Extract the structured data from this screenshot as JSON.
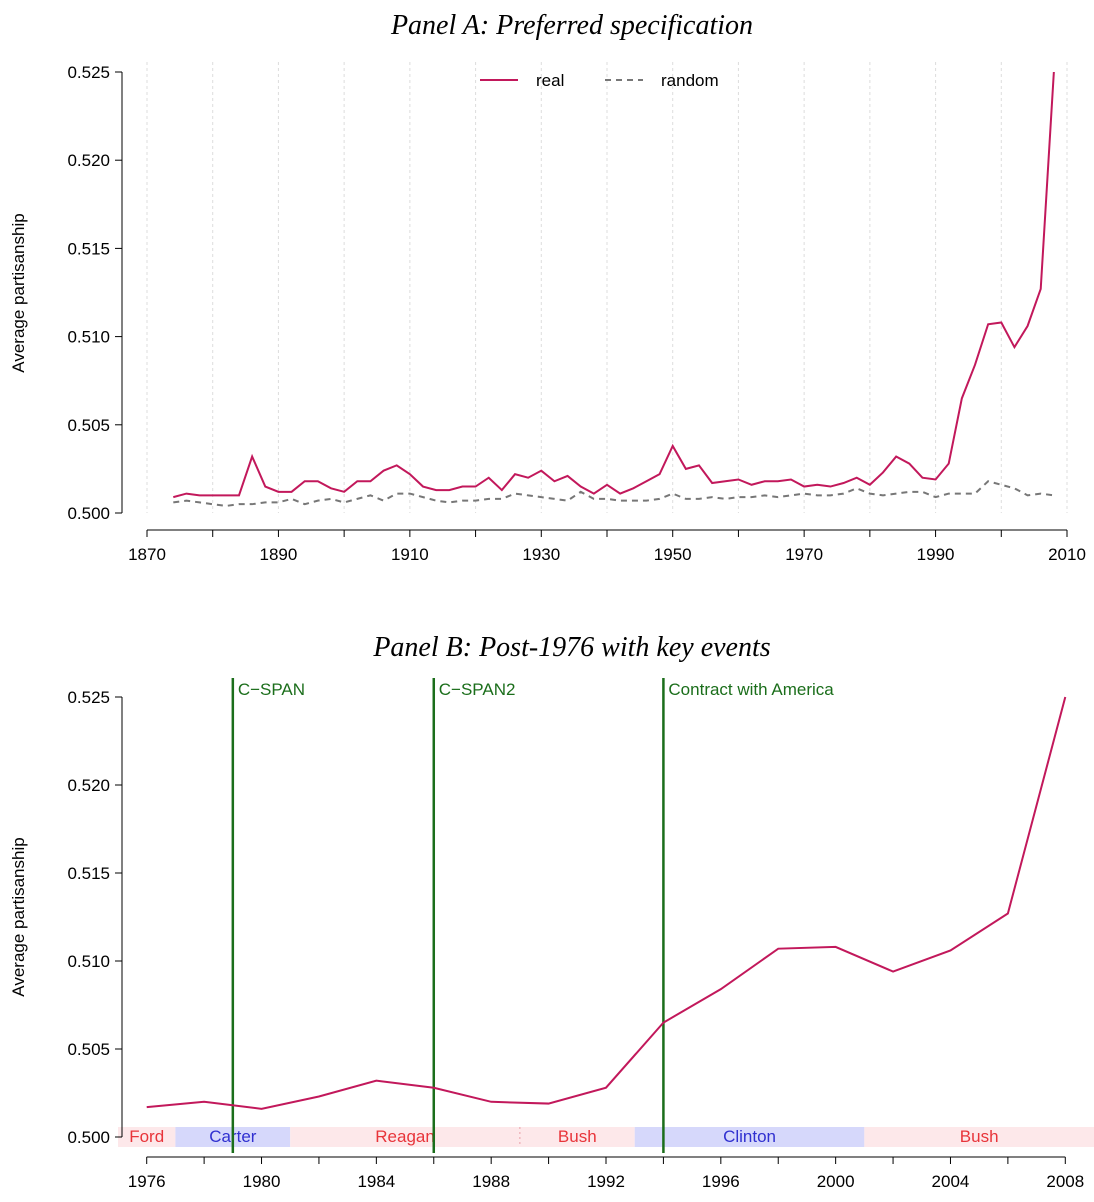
{
  "chart_data": [
    {
      "type": "line",
      "title": "Panel A: Preferred specification",
      "y_label": "Average partisanship",
      "x": [
        1874,
        1876,
        1878,
        1880,
        1882,
        1884,
        1886,
        1888,
        1890,
        1892,
        1894,
        1896,
        1898,
        1900,
        1902,
        1904,
        1906,
        1908,
        1910,
        1912,
        1914,
        1916,
        1918,
        1920,
        1922,
        1924,
        1926,
        1928,
        1930,
        1932,
        1934,
        1936,
        1938,
        1940,
        1942,
        1944,
        1946,
        1948,
        1950,
        1952,
        1954,
        1956,
        1958,
        1960,
        1962,
        1964,
        1966,
        1968,
        1970,
        1972,
        1974,
        1976,
        1978,
        1980,
        1982,
        1984,
        1986,
        1988,
        1990,
        1992,
        1994,
        1996,
        1998,
        2000,
        2002,
        2004,
        2006,
        2008
      ],
      "series": [
        {
          "name": "real",
          "color": "#c2185b",
          "dash": "none",
          "values": [
            0.5009,
            0.5011,
            0.501,
            0.501,
            0.501,
            0.501,
            0.5032,
            0.5015,
            0.5012,
            0.5012,
            0.5018,
            0.5018,
            0.5014,
            0.5012,
            0.5018,
            0.5018,
            0.5024,
            0.5027,
            0.5022,
            0.5015,
            0.5013,
            0.5013,
            0.5015,
            0.5015,
            0.502,
            0.5013,
            0.5022,
            0.502,
            0.5024,
            0.5018,
            0.5021,
            0.5015,
            0.5011,
            0.5016,
            0.5011,
            0.5014,
            0.5018,
            0.5022,
            0.5038,
            0.5025,
            0.5027,
            0.5017,
            0.5018,
            0.5019,
            0.5016,
            0.5018,
            0.5018,
            0.5019,
            0.5015,
            0.5016,
            0.5015,
            0.5017,
            0.502,
            0.5016,
            0.5023,
            0.5032,
            0.5028,
            0.502,
            0.5019,
            0.5028,
            0.5065,
            0.5084,
            0.5107,
            0.5108,
            0.5094,
            0.5106,
            0.5127,
            0.525
          ]
        },
        {
          "name": "random",
          "color": "#777777",
          "dash": "6 5",
          "values": [
            0.5006,
            0.5007,
            0.5006,
            0.5005,
            0.5004,
            0.5005,
            0.5005,
            0.5006,
            0.5006,
            0.5008,
            0.5005,
            0.5007,
            0.5008,
            0.5006,
            0.5008,
            0.501,
            0.5007,
            0.5011,
            0.5011,
            0.5009,
            0.5007,
            0.5006,
            0.5007,
            0.5007,
            0.5008,
            0.5008,
            0.5011,
            0.501,
            0.5009,
            0.5008,
            0.5007,
            0.5012,
            0.5008,
            0.5008,
            0.5007,
            0.5007,
            0.5007,
            0.5008,
            0.5011,
            0.5008,
            0.5008,
            0.5009,
            0.5008,
            0.5009,
            0.5009,
            0.501,
            0.5009,
            0.501,
            0.5011,
            0.501,
            0.501,
            0.5011,
            0.5014,
            0.5011,
            0.501,
            0.5011,
            0.5012,
            0.5012,
            0.5009,
            0.5011,
            0.5011,
            0.5011,
            0.5018,
            0.5016,
            0.5014,
            0.501,
            0.5011,
            0.501
          ]
        }
      ],
      "xlim": [
        1870,
        2010
      ],
      "xticks": [
        1870,
        1890,
        1910,
        1930,
        1950,
        1970,
        1990,
        2010
      ],
      "minor_xticks": [
        1880,
        1900,
        1920,
        1940,
        1960,
        1980,
        2000
      ],
      "grid": true,
      "ylim": [
        0.5,
        0.525
      ],
      "yticks": [
        {
          "value": 0.5,
          "label": "0.500"
        },
        {
          "value": 0.505,
          "label": "0.505"
        },
        {
          "value": 0.51,
          "label": "0.510"
        },
        {
          "value": 0.515,
          "label": "0.515"
        },
        {
          "value": 0.52,
          "label": "0.520"
        },
        {
          "value": 0.525,
          "label": "0.525"
        }
      ],
      "legend": "top"
    },
    {
      "type": "line",
      "title": "Panel B: Post-1976 with key events",
      "y_label": "Average partisanship",
      "x": [
        1976,
        1978,
        1980,
        1982,
        1984,
        1986,
        1988,
        1990,
        1992,
        1994,
        1996,
        1998,
        2000,
        2002,
        2004,
        2006,
        2008
      ],
      "series": [
        {
          "name": "real",
          "color": "#c2185b",
          "dash": "none",
          "values": [
            0.5017,
            0.502,
            0.5016,
            0.5023,
            0.5032,
            0.5028,
            0.502,
            0.5019,
            0.5028,
            0.5065,
            0.5084,
            0.5107,
            0.5108,
            0.5094,
            0.5106,
            0.5127,
            0.525
          ]
        }
      ],
      "xlim": [
        1975,
        2009
      ],
      "xticks": [
        1976,
        1980,
        1984,
        1988,
        1992,
        1996,
        2000,
        2004,
        2008
      ],
      "minor_xticks": [
        1978,
        1982,
        1986,
        1990,
        1994,
        1998,
        2002,
        2006
      ],
      "grid": false,
      "ylim": [
        0.5,
        0.525
      ],
      "yticks": [
        {
          "value": 0.5,
          "label": "0.500"
        },
        {
          "value": 0.505,
          "label": "0.505"
        },
        {
          "value": 0.51,
          "label": "0.510"
        },
        {
          "value": 0.515,
          "label": "0.515"
        },
        {
          "value": 0.52,
          "label": "0.520"
        },
        {
          "value": 0.525,
          "label": "0.525"
        }
      ],
      "events": [
        {
          "label": "C−SPAN",
          "x": 1979
        },
        {
          "label": "C−SPAN2",
          "x": 1986
        },
        {
          "label": "Contract with America",
          "x": 1994
        }
      ],
      "event_color": "#1b6e1b",
      "presidents": [
        {
          "name": "Ford",
          "start": 1974,
          "end": 1977,
          "band_color": "#fde8ea",
          "text_color": "#e8343a"
        },
        {
          "name": "Carter",
          "start": 1977,
          "end": 1981,
          "band_color": "#d6d8fb",
          "text_color": "#3030d0"
        },
        {
          "name": "Reagan",
          "start": 1981,
          "end": 1989,
          "band_color": "#fde8ea",
          "text_color": "#e8343a"
        },
        {
          "name": "Bush",
          "start": 1989,
          "end": 1993,
          "band_color": "#fde8ea",
          "text_color": "#e8343a"
        },
        {
          "name": "Clinton",
          "start": 1993,
          "end": 2001,
          "band_color": "#d6d8fb",
          "text_color": "#3030d0"
        },
        {
          "name": "Bush",
          "start": 2001,
          "end": 2009,
          "band_color": "#fde8ea",
          "text_color": "#e8343a"
        }
      ]
    }
  ]
}
